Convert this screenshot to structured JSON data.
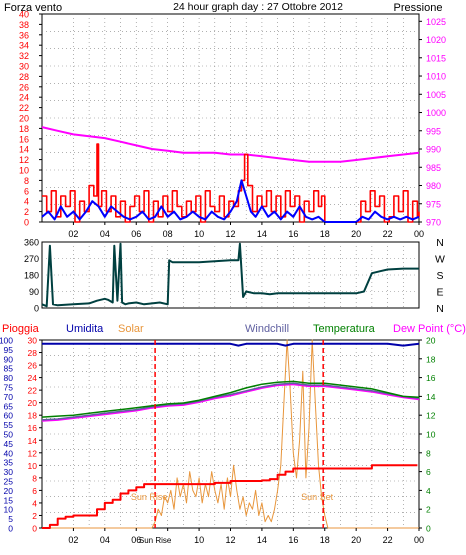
{
  "header": {
    "left_label": "Forza vento",
    "center_label": "24 hour graph day : 27 Ottobre 2012",
    "right_label": "Pressione"
  },
  "colors": {
    "wind": "#ff0000",
    "gust": "#0000ff",
    "pressure": "#ff00ff",
    "direction": "#004040",
    "rain": "#ff0000",
    "humidity": "#0000aa",
    "solar": "#e8963c",
    "windchill": "#6060a0",
    "temperature": "#008000",
    "dewpoint": "#ff00ff",
    "axis": "#000000",
    "grid": "#808080",
    "left_tick": "#ff0000",
    "right_tick": "#ff00ff"
  },
  "chart_data": [
    {
      "id": "wind_pressure",
      "type": "line",
      "x_range": [
        0,
        24
      ],
      "x_ticks": [
        "02",
        "04",
        "06",
        "08",
        "10",
        "12",
        "14",
        "16",
        "18",
        "20",
        "22",
        "00"
      ],
      "left_axis": {
        "label": "Forza vento",
        "ticks": [
          0,
          2,
          4,
          6,
          8,
          10,
          12,
          14,
          16,
          18,
          20,
          22,
          24,
          26,
          28,
          30,
          32,
          34,
          36,
          38,
          40
        ],
        "range": [
          0,
          40
        ]
      },
      "right_axis": {
        "label": "Pressione",
        "ticks": [
          970,
          975,
          980,
          985,
          990,
          995,
          1000,
          1005,
          1010,
          1015,
          1020,
          1025
        ],
        "range": [
          970,
          1027
        ]
      },
      "series": [
        {
          "key": "pressure",
          "axis": "right",
          "x": [
            0,
            1,
            2,
            3,
            4,
            5,
            6,
            7,
            8,
            9,
            10,
            11,
            12,
            13,
            14,
            15,
            16,
            17,
            18,
            19,
            20,
            21,
            22,
            23,
            24
          ],
          "values": [
            996,
            995,
            994,
            993.5,
            993,
            992,
            991,
            990,
            989.5,
            989,
            989,
            989,
            988.5,
            988.5,
            988,
            987.5,
            987,
            986.5,
            986.5,
            986.5,
            987,
            987.5,
            988,
            988.5,
            989
          ]
        },
        {
          "key": "wind",
          "axis": "left",
          "x": [
            0,
            0.3,
            0.6,
            0.9,
            1.2,
            1.5,
            1.8,
            2.1,
            2.4,
            2.7,
            3.0,
            3.3,
            3.5,
            3.6,
            3.8,
            4.1,
            4.4,
            4.7,
            5.0,
            5.3,
            5.6,
            5.9,
            6.2,
            6.5,
            6.8,
            7.1,
            7.4,
            7.7,
            8.0,
            8.3,
            8.6,
            8.9,
            9.2,
            9.5,
            9.8,
            10.1,
            10.4,
            10.7,
            11.0,
            11.3,
            11.6,
            11.9,
            12.2,
            12.5,
            12.7,
            12.9,
            13.1,
            13.4,
            13.7,
            14.0,
            14.3,
            14.6,
            14.9,
            15.2,
            15.5,
            15.8,
            16.1,
            16.4,
            16.7,
            17.0,
            17.3,
            17.6,
            17.8,
            18.0,
            18.5,
            19.0,
            19.5,
            20.0,
            20.3,
            20.6,
            20.9,
            21.2,
            21.5,
            21.8,
            22.1,
            22.4,
            22.7,
            23.0,
            23.3,
            23.6,
            23.9,
            24.0
          ],
          "values": [
            5,
            2,
            6,
            1,
            5,
            3,
            6,
            0,
            4,
            2,
            7,
            5,
            15,
            3,
            6,
            2,
            5,
            1,
            4,
            0,
            3,
            5,
            2,
            6,
            0,
            4,
            1,
            5,
            2,
            6,
            3,
            1,
            4,
            2,
            5,
            0,
            6,
            3,
            2,
            5,
            1,
            4,
            3,
            6,
            8,
            13,
            7,
            2,
            5,
            3,
            6,
            2,
            5,
            1,
            6,
            3,
            5,
            0,
            4,
            2,
            6,
            3,
            5,
            0,
            0,
            0,
            0,
            0,
            4,
            2,
            6,
            3,
            5,
            0,
            1,
            5,
            2,
            6,
            0,
            4,
            1,
            2
          ]
        },
        {
          "key": "gust",
          "axis": "left",
          "x": [
            0,
            0.4,
            0.8,
            1.2,
            1.6,
            2.0,
            2.4,
            2.8,
            3.2,
            3.6,
            4.0,
            4.4,
            4.8,
            5.2,
            5.6,
            6.0,
            6.4,
            6.8,
            7.2,
            7.6,
            8.0,
            8.4,
            8.8,
            9.2,
            9.6,
            10.0,
            10.4,
            10.8,
            11.2,
            11.6,
            12.0,
            12.4,
            12.7,
            13.0,
            13.3,
            13.6,
            14.0,
            14.4,
            14.8,
            15.2,
            15.6,
            16.0,
            16.4,
            16.8,
            17.2,
            17.6,
            18.0,
            18.5,
            19.0,
            19.5,
            20.0,
            20.4,
            20.8,
            21.2,
            21.6,
            22.0,
            22.4,
            22.8,
            23.2,
            23.6,
            24.0
          ],
          "values": [
            1,
            2,
            0.5,
            3,
            1,
            2,
            0.5,
            2,
            4,
            3,
            1,
            3,
            2,
            1,
            0.5,
            1,
            2,
            0.5,
            1,
            3,
            1,
            2,
            0.5,
            1,
            2,
            1,
            0.5,
            2,
            1,
            0.5,
            2,
            4,
            8,
            5,
            2,
            1,
            3,
            1,
            2,
            0.5,
            2,
            1,
            3,
            1,
            0.5,
            1,
            0,
            0,
            0,
            0,
            0,
            1,
            0.5,
            2,
            1,
            0.5,
            1,
            0.5,
            1,
            0.5,
            1
          ]
        }
      ]
    },
    {
      "id": "wind_direction",
      "type": "line",
      "x_range": [
        0,
        24
      ],
      "left_axis": {
        "ticks": [
          0,
          90,
          180,
          270,
          360
        ],
        "range": [
          0,
          360
        ]
      },
      "right_labels": [
        "N",
        "W",
        "S",
        "E",
        "N"
      ],
      "series": [
        {
          "key": "direction",
          "x": [
            0,
            0.3,
            0.5,
            0.7,
            1.0,
            2.0,
            3.0,
            3.5,
            4.0,
            4.2,
            4.5,
            4.6,
            4.8,
            5.0,
            5.1,
            5.3,
            5.5,
            6.0,
            6.5,
            7.0,
            7.5,
            8.0,
            8.1,
            8.3,
            9.0,
            10.0,
            11.0,
            12.0,
            12.5,
            12.6,
            12.8,
            13.0,
            13.5,
            14.0,
            14.5,
            15.0,
            16.0,
            17.0,
            18.0,
            19.0,
            20.0,
            20.5,
            21.0,
            21.5,
            22.0,
            23.0,
            24.0
          ],
          "values": [
            20,
            10,
            340,
            20,
            15,
            20,
            25,
            40,
            50,
            45,
            30,
            340,
            40,
            350,
            30,
            20,
            25,
            30,
            20,
            25,
            30,
            20,
            260,
            250,
            250,
            250,
            255,
            260,
            260,
            350,
            60,
            90,
            80,
            80,
            75,
            80,
            80,
            80,
            80,
            80,
            80,
            90,
            190,
            200,
            210,
            215,
            215
          ]
        }
      ]
    },
    {
      "id": "temp_humidity",
      "type": "line",
      "x_range": [
        0,
        24
      ],
      "legend": [
        "Pioggia",
        "Umidita",
        "Solar",
        "Windchill",
        "Temperatura",
        "Dew Point (°C)"
      ],
      "left_axis": {
        "ticks": [
          0,
          5,
          10,
          15,
          20,
          25,
          30,
          35,
          40,
          45,
          50,
          55,
          60,
          65,
          70,
          75,
          80,
          85,
          90,
          95,
          100
        ],
        "range": [
          0,
          100
        ]
      },
      "left_axis2": {
        "ticks": [
          0,
          2,
          4,
          6,
          8,
          10,
          12,
          14,
          16,
          18,
          20,
          22,
          24,
          26,
          28,
          30
        ],
        "range": [
          0,
          30
        ]
      },
      "right_axis": {
        "ticks": [
          0,
          2,
          4,
          6,
          8,
          10,
          12,
          14,
          16,
          18,
          20
        ],
        "range": [
          0,
          20
        ]
      },
      "annotations": [
        {
          "text": "Sun Rise",
          "x": 7.2
        },
        {
          "text": "Sun Set",
          "x": 17.9
        }
      ],
      "series": [
        {
          "key": "humidity",
          "axis": "left",
          "x": [
            0,
            1,
            2,
            3,
            4,
            5,
            6,
            7,
            8,
            9,
            10,
            11,
            12,
            12.5,
            13,
            14,
            15,
            15.5,
            16,
            17,
            18,
            19,
            20,
            21,
            22,
            23,
            24
          ],
          "values": [
            98,
            98,
            98,
            98,
            98,
            98,
            98,
            98,
            98,
            98,
            98,
            98,
            98,
            97,
            98,
            98,
            98,
            97,
            98,
            98,
            98,
            98,
            98,
            98,
            98,
            97,
            98
          ]
        },
        {
          "key": "temperature",
          "axis": "right",
          "x": [
            0,
            1,
            2,
            3,
            4,
            5,
            6,
            7,
            8,
            9,
            10,
            11,
            12,
            13,
            14,
            15,
            16,
            17,
            18,
            19,
            20,
            21,
            22,
            23,
            24
          ],
          "values": [
            11.8,
            11.9,
            12.0,
            12.2,
            12.4,
            12.6,
            12.8,
            13.0,
            13.2,
            13.3,
            13.6,
            14.0,
            14.4,
            14.9,
            15.3,
            15.5,
            15.6,
            15.4,
            15.4,
            15.2,
            15.0,
            14.8,
            14.4,
            14.0,
            13.9
          ]
        },
        {
          "key": "windchill",
          "axis": "right",
          "x": [
            0,
            1,
            2,
            3,
            4,
            5,
            6,
            7,
            8,
            9,
            10,
            11,
            12,
            13,
            14,
            15,
            16,
            17,
            18,
            19,
            20,
            21,
            22,
            23,
            24
          ],
          "values": [
            11.5,
            11.6,
            11.8,
            12.0,
            12.2,
            12.4,
            12.6,
            12.9,
            13.1,
            13.2,
            13.5,
            13.9,
            14.2,
            14.6,
            15.0,
            15.3,
            15.4,
            15.2,
            15.2,
            15.0,
            14.8,
            14.6,
            14.3,
            14.0,
            13.8
          ]
        },
        {
          "key": "dewpoint",
          "axis": "right",
          "x": [
            0,
            1,
            2,
            3,
            4,
            5,
            6,
            7,
            8,
            9,
            10,
            11,
            12,
            13,
            14,
            15,
            16,
            17,
            18,
            19,
            20,
            21,
            22,
            23,
            24
          ],
          "values": [
            11.4,
            11.5,
            11.7,
            11.9,
            12.1,
            12.3,
            12.5,
            12.8,
            13.0,
            13.1,
            13.4,
            13.8,
            14.1,
            14.5,
            14.9,
            15.2,
            15.3,
            15.1,
            15.1,
            14.9,
            14.7,
            14.5,
            14.2,
            13.9,
            13.7
          ]
        },
        {
          "key": "rain",
          "axis": "left2",
          "x": [
            0,
            0.5,
            1.0,
            1.5,
            2.0,
            2.5,
            3.0,
            3.5,
            4.0,
            4.5,
            5.0,
            5.5,
            6.0,
            6.5,
            7.0,
            7.5,
            8.0,
            9.0,
            10.0,
            11.0,
            12.0,
            12.5,
            13.0,
            14.0,
            14.5,
            15.0,
            15.5,
            16.0,
            17.0,
            18.0,
            19.0,
            20.0,
            21.0,
            22.0,
            23.0,
            23.9
          ],
          "values": [
            0,
            0.5,
            1.5,
            1.8,
            2.0,
            2.0,
            2.0,
            3.0,
            4.0,
            4.5,
            5.5,
            6.0,
            6.5,
            7.0,
            7.0,
            7.0,
            7.0,
            7.0,
            7.0,
            7.2,
            7.5,
            7.5,
            7.5,
            7.6,
            7.8,
            8.5,
            9.0,
            9.5,
            9.5,
            9.5,
            9.5,
            9.5,
            10.0,
            10.0,
            10.0,
            10.0
          ]
        },
        {
          "key": "solar",
          "axis": "left2",
          "x": [
            0,
            7.0,
            7.2,
            7.4,
            7.6,
            7.8,
            8.0,
            8.2,
            8.4,
            8.6,
            8.8,
            9.0,
            9.2,
            9.4,
            9.6,
            9.8,
            10.0,
            10.2,
            10.4,
            10.6,
            10.8,
            11.0,
            11.2,
            11.4,
            11.6,
            11.8,
            12.0,
            12.2,
            12.4,
            12.6,
            12.8,
            13.0,
            13.2,
            13.4,
            13.6,
            13.8,
            14.0,
            14.2,
            14.4,
            14.6,
            14.8,
            15.0,
            15.2,
            15.4,
            15.6,
            15.8,
            16.0,
            16.2,
            16.4,
            16.6,
            16.8,
            17.0,
            17.2,
            17.4,
            17.6,
            17.8,
            18.0,
            18.2,
            24.0
          ],
          "values": [
            0,
            0,
            1,
            3,
            2,
            5,
            4,
            6,
            3,
            8,
            5,
            7,
            4,
            9,
            6,
            5,
            8,
            4,
            7,
            5,
            9,
            6,
            4,
            7,
            3,
            8,
            5,
            10,
            6,
            3,
            5,
            2,
            4,
            3,
            6,
            2,
            4,
            1,
            2,
            1,
            3,
            6,
            10,
            20,
            30,
            22,
            12,
            8,
            14,
            25,
            8,
            16,
            30,
            20,
            10,
            5,
            2,
            0,
            0
          ]
        }
      ]
    }
  ]
}
